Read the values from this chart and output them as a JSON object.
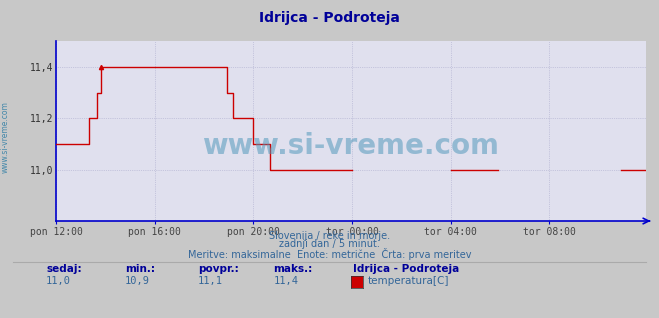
{
  "title": "Idrijca - Podroteja",
  "title_color": "#000099",
  "bg_color": "#c8c8c8",
  "plot_bg_color": "#e0e0ee",
  "line_color": "#cc0000",
  "axis_color": "#0000cc",
  "grid_color": "#aaaacc",
  "ylabel_color": "#4488aa",
  "watermark_text": "www.si-vreme.com",
  "watermark_color": "#5599bb",
  "footer_line1": "Slovenija / reke in morje.",
  "footer_line2": "zadnji dan / 5 minut.",
  "footer_line3": "Meritve: maksimalne  Enote: metrične  Črta: prva meritev",
  "footer_color": "#336699",
  "stat_label_color": "#000099",
  "stat_value_color": "#336699",
  "sedaj_label": "sedaj:",
  "sedaj_value": "11,0",
  "min_label": "min.:",
  "min_value": "10,9",
  "povpr_label": "povpr.:",
  "povpr_value": "11,1",
  "maks_label": "maks.:",
  "maks_value": "11,4",
  "legend_station": "Idrijca - Podroteja",
  "legend_param": "temperatura[C]",
  "legend_color": "#cc0000",
  "ylim": [
    10.8,
    11.5
  ],
  "yticks": [
    11.0,
    11.2,
    11.4
  ],
  "ytick_labels": [
    "11,0",
    "11,2",
    "11,4"
  ],
  "xtick_labels": [
    "pon 12:00",
    "pon 16:00",
    "pon 20:00",
    "tor 00:00",
    "tor 04:00",
    "tor 08:00"
  ],
  "xtick_positions": [
    0,
    48,
    96,
    144,
    192,
    240
  ],
  "total_points": 288,
  "y_series": [
    11.1,
    11.1,
    11.1,
    11.1,
    11.1,
    11.1,
    11.1,
    11.1,
    11.1,
    11.1,
    11.1,
    11.1,
    11.1,
    11.1,
    11.1,
    11.1,
    11.2,
    11.2,
    11.2,
    11.2,
    11.3,
    11.3,
    11.4,
    11.4,
    11.4,
    11.4,
    11.4,
    11.4,
    11.4,
    11.4,
    11.4,
    11.4,
    11.4,
    11.4,
    11.4,
    11.4,
    11.4,
    11.4,
    11.4,
    11.4,
    11.4,
    11.4,
    11.4,
    11.4,
    11.4,
    11.4,
    11.4,
    11.4,
    11.4,
    11.4,
    11.4,
    11.4,
    11.4,
    11.4,
    11.4,
    11.4,
    11.4,
    11.4,
    11.4,
    11.4,
    11.4,
    11.4,
    11.4,
    11.4,
    11.4,
    11.4,
    11.4,
    11.4,
    11.4,
    11.4,
    11.4,
    11.4,
    11.4,
    11.4,
    11.4,
    11.4,
    11.4,
    11.4,
    11.4,
    11.4,
    11.4,
    11.4,
    11.4,
    11.3,
    11.3,
    11.3,
    11.2,
    11.2,
    11.2,
    11.2,
    11.2,
    11.2,
    11.2,
    11.2,
    11.2,
    11.2,
    11.1,
    11.1,
    11.1,
    11.1,
    11.1,
    11.1,
    11.1,
    11.1,
    11.0,
    11.0,
    11.0,
    11.0,
    11.0,
    11.0,
    11.0,
    11.0,
    11.0,
    11.0,
    11.0,
    11.0,
    11.0,
    11.0,
    11.0,
    11.0,
    11.0,
    11.0,
    11.0,
    11.0,
    11.0,
    11.0,
    11.0,
    11.0,
    11.0,
    11.0,
    11.0,
    11.0,
    11.0,
    11.0,
    11.0,
    11.0,
    11.0,
    11.0,
    11.0,
    11.0,
    11.0,
    11.0,
    11.0,
    11.0,
    11.0,
    null,
    null,
    null,
    null,
    null,
    null,
    null,
    null,
    null,
    null,
    null,
    null,
    null,
    null,
    null,
    null,
    null,
    null,
    null,
    null,
    null,
    null,
    null,
    null,
    null,
    null,
    null,
    null,
    null,
    null,
    null,
    null,
    null,
    null,
    null,
    null,
    null,
    null,
    null,
    null,
    null,
    null,
    null,
    null,
    null,
    null,
    null,
    11.0,
    11.0,
    11.0,
    11.0,
    11.0,
    11.0,
    11.0,
    11.0,
    11.0,
    11.0,
    11.0,
    11.0,
    11.0,
    11.0,
    11.0,
    11.0,
    11.0,
    11.0,
    11.0,
    11.0,
    11.0,
    11.0,
    11.0,
    11.0,
    null,
    null,
    null,
    null,
    null,
    null,
    null,
    null,
    null,
    null,
    null,
    null,
    null,
    null,
    null,
    null,
    null,
    null,
    null,
    null,
    null,
    null,
    null,
    null,
    null,
    null,
    null,
    null,
    null,
    null,
    null,
    null,
    null,
    null,
    null,
    null,
    null,
    null,
    null,
    null,
    null,
    null,
    null,
    null,
    null,
    null,
    null,
    null,
    null,
    null,
    null,
    null,
    null,
    null,
    null,
    null,
    null,
    null,
    null,
    11.0,
    11.0,
    11.0,
    11.0,
    11.0,
    11.0,
    11.0,
    11.0,
    11.0,
    11.0,
    11.0,
    11.0,
    11.0,
    11.0,
    11.0,
    11.0,
    11.0,
    11.0,
    11.0,
    11.0,
    11.0,
    11.0,
    11.0,
    11.0,
    11.0,
    11.0,
    11.0,
    null
  ]
}
